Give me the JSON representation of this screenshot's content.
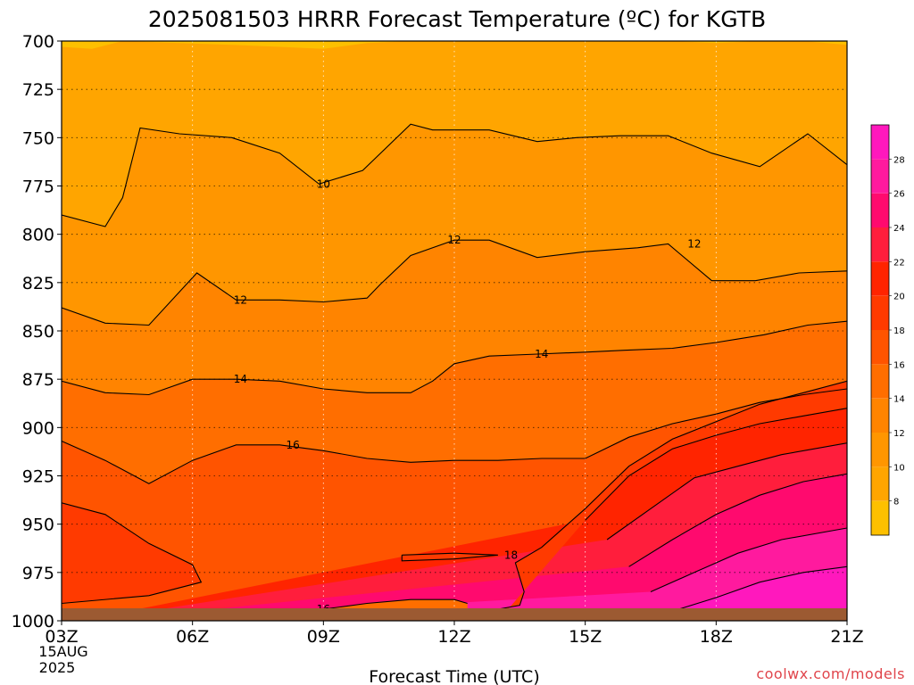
{
  "chart_data": {
    "type": "heatmap",
    "title": "2025081503 HRRR Forecast Temperature (ºC) for KGTB",
    "xlabel": "Forecast Time (UTC)",
    "ylabel": "",
    "credit": "coolwx.com/models",
    "x_ticks": [
      "03Z",
      "06Z",
      "09Z",
      "12Z",
      "15Z",
      "18Z",
      "21Z"
    ],
    "x_date_line1": "15AUG",
    "x_date_line2": "2025",
    "y_ticks": [
      "700",
      "725",
      "750",
      "775",
      "800",
      "825",
      "850",
      "875",
      "900",
      "925",
      "950",
      "975",
      "1000"
    ],
    "y_range_hpa": [
      700,
      1000
    ],
    "x_range_hours": [
      3,
      21
    ],
    "grid": true,
    "legend": "right",
    "colorbar_labels": [
      "8",
      "10",
      "12",
      "14",
      "16",
      "18",
      "20",
      "22",
      "24",
      "26",
      "28"
    ],
    "colorbar_colors": [
      "#fdc000",
      "#ffa500",
      "#ff9600",
      "#ff8400",
      "#ff6e00",
      "#ff5400",
      "#ff3a00",
      "#ff2400",
      "#ff1e3c",
      "#ff0a6e",
      "#ff1a9e",
      "#ff18bd"
    ],
    "surface_color": "#9c5a32",
    "contours": [
      {
        "label": "10",
        "points": [
          [
            3,
            790
          ],
          [
            4,
            796
          ],
          [
            4.4,
            781
          ],
          [
            4.8,
            745
          ],
          [
            5.7,
            748
          ],
          [
            6.9,
            750
          ],
          [
            8,
            758
          ],
          [
            8.9,
            774
          ],
          [
            9.9,
            767
          ],
          [
            11,
            743
          ],
          [
            11.5,
            746
          ],
          [
            12.8,
            746
          ],
          [
            13.9,
            752
          ],
          [
            14.8,
            750
          ],
          [
            15.8,
            749
          ],
          [
            16.9,
            749
          ],
          [
            17.9,
            758
          ],
          [
            19,
            765
          ],
          [
            20.1,
            748
          ],
          [
            21,
            764
          ]
        ]
      },
      {
        "label": "12",
        "points": [
          [
            3,
            838
          ],
          [
            4,
            846
          ],
          [
            5,
            847
          ],
          [
            6.1,
            820
          ],
          [
            7,
            834
          ],
          [
            8,
            834
          ],
          [
            9,
            835
          ],
          [
            10,
            833
          ],
          [
            10.3,
            826
          ],
          [
            11,
            811
          ],
          [
            12,
            803
          ],
          [
            12.8,
            803
          ],
          [
            13.9,
            812
          ],
          [
            15,
            809
          ],
          [
            16.2,
            807
          ],
          [
            16.9,
            805
          ],
          [
            17.9,
            824
          ],
          [
            18.9,
            824
          ],
          [
            19.9,
            820
          ],
          [
            21,
            819
          ]
        ]
      },
      {
        "label": "14",
        "points": [
          [
            3,
            876
          ],
          [
            4,
            882
          ],
          [
            5,
            883
          ],
          [
            6,
            875
          ],
          [
            7,
            875
          ],
          [
            8,
            876
          ],
          [
            9,
            880
          ],
          [
            10,
            882
          ],
          [
            11,
            882
          ],
          [
            11.5,
            876
          ],
          [
            12,
            867
          ],
          [
            12.8,
            863
          ],
          [
            13.9,
            862
          ],
          [
            15,
            861
          ],
          [
            15.9,
            860
          ],
          [
            17,
            859
          ],
          [
            18,
            856
          ],
          [
            19.1,
            852
          ],
          [
            20.1,
            847
          ],
          [
            21,
            845
          ]
        ]
      },
      {
        "label": "16",
        "points": [
          [
            3,
            907
          ],
          [
            4,
            917
          ],
          [
            5,
            929
          ],
          [
            6,
            917
          ],
          [
            7,
            909
          ],
          [
            8,
            909
          ],
          [
            9,
            912
          ],
          [
            10,
            916
          ],
          [
            11,
            918
          ],
          [
            12,
            917
          ],
          [
            13,
            917
          ],
          [
            14,
            916
          ],
          [
            15,
            916
          ],
          [
            16,
            905
          ],
          [
            17,
            898
          ],
          [
            18,
            893
          ],
          [
            19,
            887
          ],
          [
            20,
            883
          ],
          [
            21,
            880
          ]
        ]
      },
      {
        "label": "",
        "points": [
          [
            15,
            948
          ],
          [
            16,
            925
          ],
          [
            17,
            911
          ],
          [
            18,
            904
          ],
          [
            19,
            898
          ],
          [
            20,
            894
          ],
          [
            21,
            890
          ]
        ]
      },
      {
        "label": "",
        "points": [
          [
            15.5,
            958
          ],
          [
            16.5,
            942
          ],
          [
            17.5,
            926
          ],
          [
            18.5,
            920
          ],
          [
            19.5,
            914
          ],
          [
            21,
            908
          ]
        ]
      },
      {
        "label": "",
        "points": [
          [
            16,
            972
          ],
          [
            17,
            958
          ],
          [
            18,
            945
          ],
          [
            19,
            935
          ],
          [
            20,
            928
          ],
          [
            21,
            924
          ]
        ]
      },
      {
        "label": "",
        "points": [
          [
            16.5,
            985
          ],
          [
            17.5,
            975
          ],
          [
            18.5,
            965
          ],
          [
            19.5,
            958
          ],
          [
            21,
            952
          ]
        ]
      },
      {
        "label": "",
        "points": [
          [
            17,
            995
          ],
          [
            18,
            988
          ],
          [
            19,
            980
          ],
          [
            20,
            975
          ],
          [
            21,
            972
          ]
        ]
      },
      {
        "label": "18",
        "points": [
          [
            13,
            994
          ],
          [
            13.5,
            992
          ],
          [
            13.6,
            985
          ],
          [
            13.4,
            970
          ],
          [
            14,
            962
          ],
          [
            15,
            942
          ],
          [
            16,
            920
          ],
          [
            17,
            906
          ],
          [
            18,
            897
          ],
          [
            19,
            888
          ],
          [
            20,
            882
          ],
          [
            21,
            876
          ]
        ]
      },
      {
        "label": "",
        "points": [
          [
            3,
            939
          ],
          [
            4,
            945
          ],
          [
            5,
            960
          ],
          [
            6,
            971
          ],
          [
            6.2,
            980
          ],
          [
            5,
            987
          ],
          [
            3,
            991
          ]
        ]
      },
      {
        "label": "18",
        "points": [
          [
            10.8,
            966
          ],
          [
            12,
            965
          ],
          [
            13,
            966
          ],
          [
            12,
            968
          ],
          [
            10.8,
            969
          ],
          [
            10.8,
            966
          ]
        ]
      },
      {
        "label": "16",
        "points": [
          [
            7,
            997
          ],
          [
            8,
            994
          ],
          [
            9,
            994
          ],
          [
            10,
            991
          ],
          [
            11,
            989
          ],
          [
            12,
            989
          ],
          [
            12.3,
            991
          ]
        ]
      }
    ]
  }
}
